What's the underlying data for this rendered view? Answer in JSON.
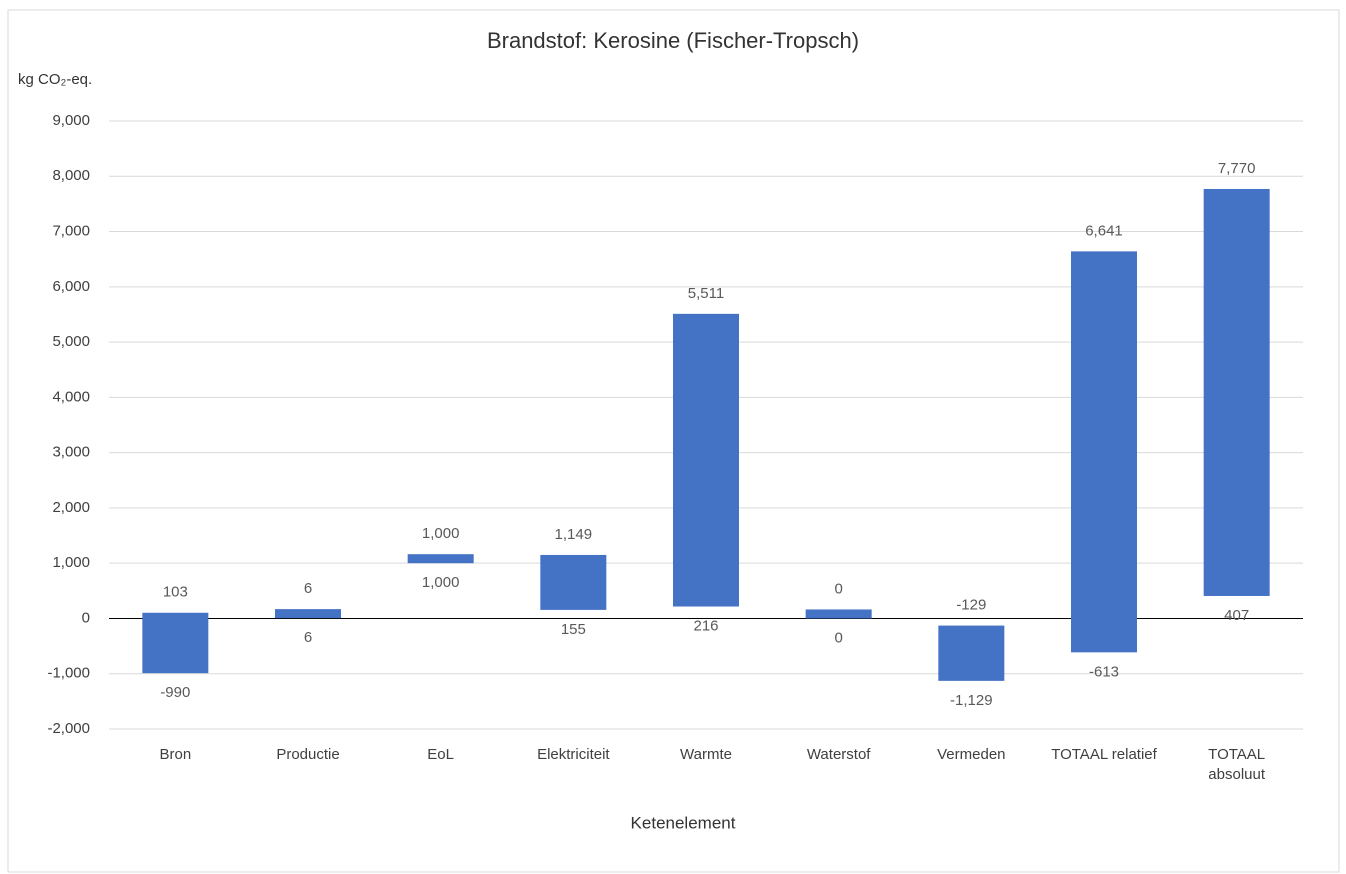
{
  "chart_data": {
    "type": "floating_bar",
    "title": "Brandstof: Kerosine (Fischer-Tropsch)",
    "y_label": "kg CO₂-eq.",
    "x_label": "Ketenelement",
    "categories": [
      "Bron",
      "Productie",
      "EoL",
      "Elektriciteit",
      "Warmte",
      "Waterstof",
      "Vermeden",
      "TOTAAL relatief",
      "TOTAAL absoluut"
    ],
    "series": [
      {
        "values": [
          -990,
          6,
          1000,
          155,
          216,
          0,
          -1129,
          -613,
          407
        ],
        "value_labels": [
          "-990",
          "6",
          "1,000",
          "155",
          "216",
          "0",
          "-1,129",
          "-613",
          "407"
        ]
      },
      {
        "values": [
          103,
          6,
          1000,
          1149,
          5511,
          0,
          -129,
          6641,
          7770
        ],
        "value_labels": [
          "103",
          "6",
          "1,000",
          "1,149",
          "5,511",
          "0",
          "-129",
          "6,641",
          "7,770"
        ]
      }
    ],
    "color": "#4472c4",
    "ylim": [
      -2000,
      9000
    ],
    "yticks": [
      {
        "value": -2000,
        "label": "-2,000"
      },
      {
        "value": -1000,
        "label": "-1,000"
      },
      0,
      {
        "value": 1000,
        "label": "1,000"
      },
      {
        "value": 2000,
        "label": "2,000"
      },
      {
        "value": 3000,
        "label": "3,000"
      },
      {
        "value": 4000,
        "label": "4,000"
      },
      {
        "value": 5000,
        "label": "5,000"
      },
      {
        "value": 6000,
        "label": "6,000"
      },
      {
        "value": 7000,
        "label": "7,000"
      },
      {
        "value": 8000,
        "label": "8,000"
      },
      {
        "value": 9000,
        "label": "9,000"
      }
    ],
    "grid": true
  }
}
